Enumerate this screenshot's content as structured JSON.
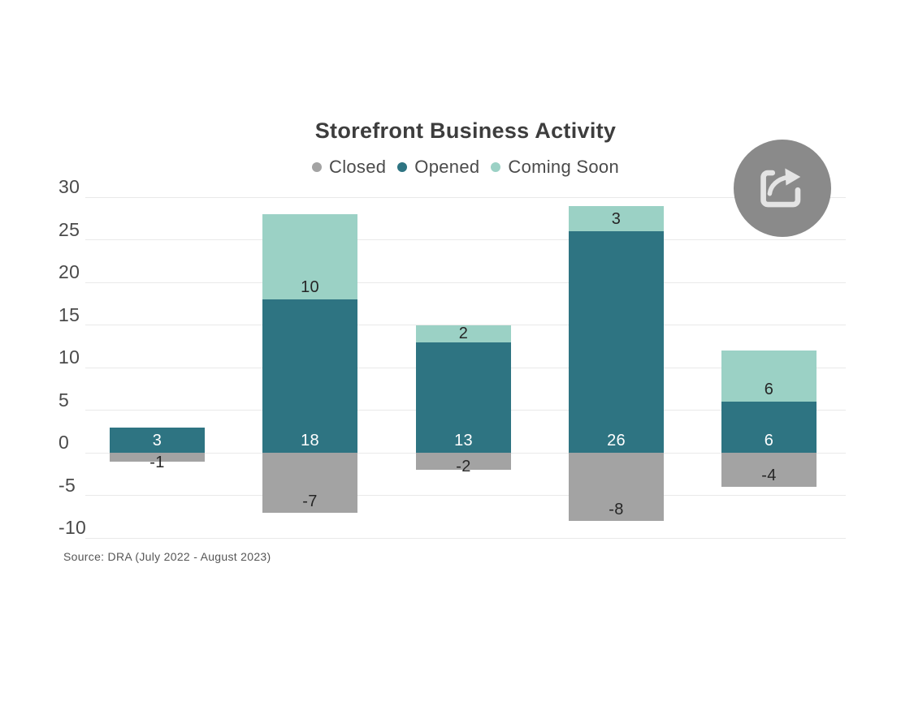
{
  "title": "Storefront Business Activity",
  "source_note": "Source: DRA (July 2022 - August 2023)",
  "share_button": {
    "icon": "share-arrow-icon",
    "background": "#8a8a8a",
    "glyph_color": "#e4e4e4"
  },
  "colors": {
    "closed": "#a3a3a3",
    "opened": "#2e7482",
    "coming_soon": "#9bd1c5",
    "grid": "#e9e9e9",
    "title_text": "#3d3d3d",
    "legend_text": "#4b4b4b",
    "axis_text": "#4a4a4a",
    "label_dark": "#262626",
    "label_light": "#ffffff"
  },
  "chart_data": {
    "type": "bar",
    "stacked": true,
    "title": "Storefront Business Activity",
    "legend": [
      "Closed",
      "Opened",
      "Coming Soon"
    ],
    "legend_position": "top",
    "grid": true,
    "ylim": [
      -10,
      30
    ],
    "yticks": [
      30,
      25,
      20,
      15,
      10,
      5,
      0,
      -5,
      -10
    ],
    "x_axis_labels_shown": false,
    "series": [
      {
        "name": "Closed",
        "color": "#a3a3a3",
        "label_color": "#262626",
        "values": [
          -1,
          -7,
          -2,
          -8,
          -4
        ]
      },
      {
        "name": "Opened",
        "color": "#2e7482",
        "label_color": "#ffffff",
        "values": [
          3,
          18,
          13,
          26,
          6
        ]
      },
      {
        "name": "Coming Soon",
        "color": "#9bd1c5",
        "label_color": "#262626",
        "values": [
          0,
          10,
          2,
          3,
          6
        ]
      }
    ],
    "source": "Source: DRA (July 2022 - August 2023)"
  }
}
